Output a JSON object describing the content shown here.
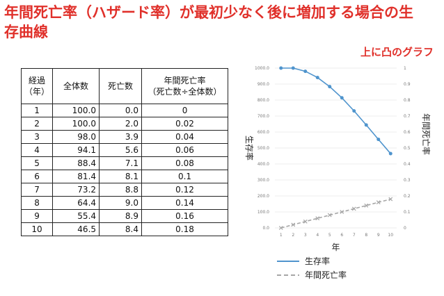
{
  "title": "年間死亡率（ハザード率）が最初少なく後に増加する場合の生存曲線",
  "annotation": "上に凸のグラフ",
  "colors": {
    "title": "#e0302a",
    "survival": "#4f94cd",
    "hazard": "#a6a6a6"
  },
  "table": {
    "headers": [
      [
        "経過",
        "（年）"
      ],
      [
        "全体数"
      ],
      [
        "死亡数"
      ],
      [
        "年間死亡率",
        "（死亡数÷全体数）"
      ]
    ],
    "rows": [
      [
        "1",
        "100.0",
        "0.0",
        "0"
      ],
      [
        "2",
        "100.0",
        "2.0",
        "0.02"
      ],
      [
        "3",
        "98.0",
        "3.9",
        "0.04"
      ],
      [
        "4",
        "94.1",
        "5.6",
        "0.06"
      ],
      [
        "5",
        "88.4",
        "7.1",
        "0.08"
      ],
      [
        "6",
        "81.4",
        "8.1",
        "0.1"
      ],
      [
        "7",
        "73.2",
        "8.8",
        "0.12"
      ],
      [
        "8",
        "64.4",
        "9.0",
        "0.14"
      ],
      [
        "9",
        "55.4",
        "8.9",
        "0.16"
      ],
      [
        "10",
        "46.5",
        "8.4",
        "0.18"
      ]
    ]
  },
  "chart_data": {
    "type": "line",
    "x": [
      1,
      2,
      3,
      4,
      5,
      6,
      7,
      8,
      9,
      10
    ],
    "xlabel": "年",
    "ylabel": "生存率",
    "y2label": "年間死亡率",
    "ylim": [
      0,
      1000
    ],
    "y2lim": [
      0,
      1
    ],
    "x_ticks": [
      "1",
      "2",
      "3",
      "4",
      "5",
      "6",
      "7",
      "8",
      "9",
      "10"
    ],
    "y_ticks": [
      "0.0",
      "100.0",
      "200.0",
      "300.0",
      "400.0",
      "500.0",
      "600.0",
      "700.0",
      "800.0",
      "900.0",
      "1000.0"
    ],
    "y2_ticks": [
      "0",
      "0.1",
      "0.2",
      "0.3",
      "0.4",
      "0.5",
      "0.6",
      "0.7",
      "0.8",
      "0.9",
      "1"
    ],
    "series": [
      {
        "name": "生存率",
        "axis": "left",
        "style": "solid",
        "values": [
          1000,
          1000,
          980,
          941,
          884,
          814,
          732,
          644,
          554,
          465
        ]
      },
      {
        "name": "年間死亡率",
        "axis": "right",
        "style": "dashed",
        "values": [
          0,
          0.02,
          0.04,
          0.06,
          0.08,
          0.1,
          0.12,
          0.14,
          0.16,
          0.18
        ]
      }
    ],
    "legend_position": "bottom"
  }
}
